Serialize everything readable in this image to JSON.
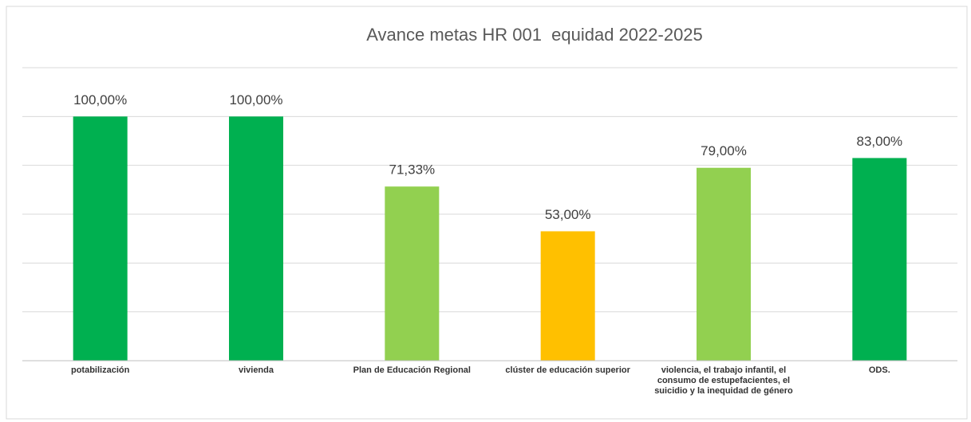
{
  "chart_data": {
    "type": "bar",
    "title": "Avance metas HR 001  equidad 2022-2025",
    "categories": [
      "potabilización",
      "vivienda",
      "Plan de  Educación Regional",
      "clúster de educación superior",
      "violencia, el trabajo infantil, el consumo de estupefacientes, el suicidio y la inequidad de género",
      "ODS."
    ],
    "values": [
      100,
      100,
      71.33,
      53,
      79,
      83
    ],
    "value_labels": [
      "100,00%",
      "100,00%",
      "71,33%",
      "53,00%",
      "79,00%",
      "83,00%"
    ],
    "colors": [
      "#00b050",
      "#00b050",
      "#92d050",
      "#ffc000",
      "#92d050",
      "#00b050"
    ],
    "ylim": [
      0,
      120
    ],
    "yticks": [
      0,
      20,
      40,
      60,
      80,
      100,
      120
    ],
    "grid": true
  }
}
